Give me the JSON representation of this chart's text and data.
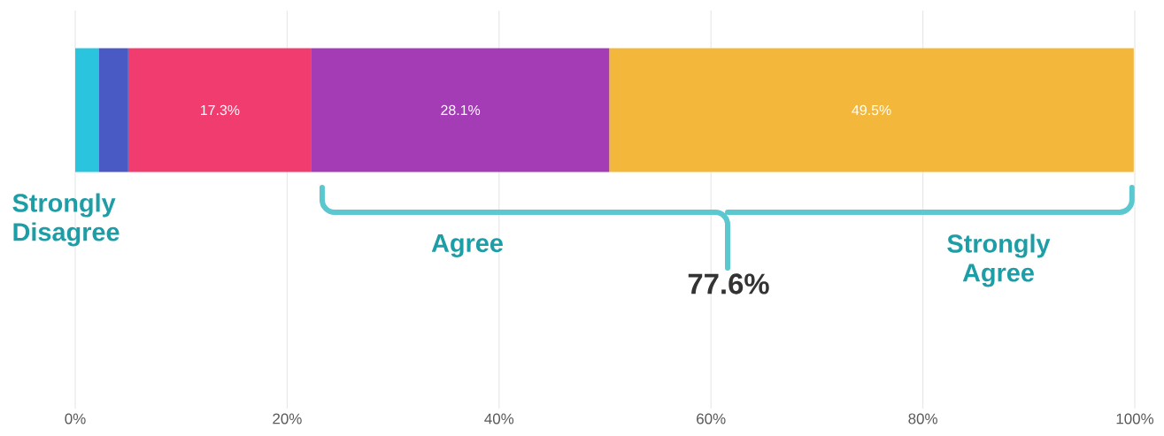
{
  "chart_data": {
    "type": "bar",
    "orientation": "horizontal",
    "stacked": true,
    "categories": [
      null
    ],
    "series": [
      {
        "color": "#2bc4df",
        "values": [
          2.2
        ],
        "value_labels": [
          null
        ]
      },
      {
        "color": "#4a5ac4",
        "values": [
          2.8
        ],
        "value_labels": [
          null
        ]
      },
      {
        "color": "#f03c6e",
        "values": [
          17.3
        ],
        "value_labels": [
          "17.3%"
        ]
      },
      {
        "color": "#a43db5",
        "values": [
          28.1
        ],
        "value_labels": [
          "28.1%"
        ]
      },
      {
        "color": "#f3b73b",
        "values": [
          49.5
        ],
        "value_labels": [
          "49.5%"
        ]
      }
    ],
    "xlim": [
      0,
      100
    ],
    "xticks": [
      {
        "value": 0,
        "label": "0%"
      },
      {
        "value": 20,
        "label": "20%"
      },
      {
        "value": 40,
        "label": "40%"
      },
      {
        "value": 60,
        "label": "60%"
      },
      {
        "value": 80,
        "label": "80%"
      },
      {
        "value": 100,
        "label": "100%"
      }
    ],
    "grid": "x",
    "annotations": [
      "Strongly Disagree",
      "Agree",
      "Strongly Agree",
      "77.6%"
    ]
  }
}
